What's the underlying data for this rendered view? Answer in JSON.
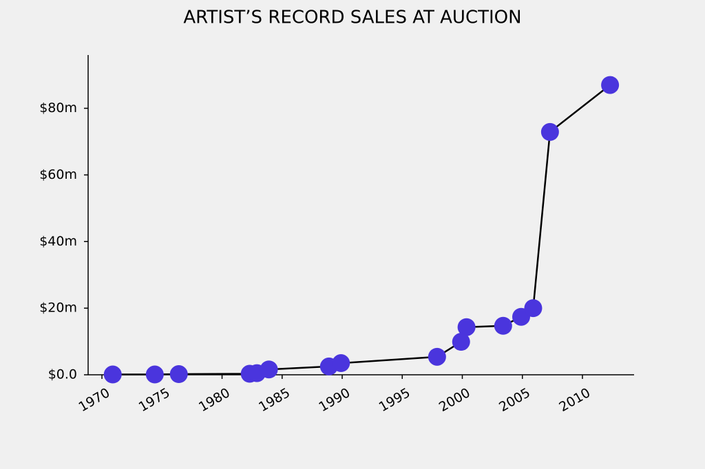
{
  "chart_data": {
    "type": "line",
    "title": "ARTIST’S RECORD SALES AT AUCTION",
    "x": [
      1970.9,
      1974.4,
      1976.4,
      1982.3,
      1982.9,
      1983.9,
      1988.9,
      1989.9,
      1997.9,
      1999.9,
      2000.35,
      2003.4,
      2004.9,
      2005.9,
      2007.3,
      2012.3
    ],
    "series": [
      {
        "color": "#4a35dd",
        "line_color": "#000000",
        "values": [
          0.1,
          0.1,
          0.2,
          0.3,
          0.5,
          1.6,
          2.5,
          3.5,
          5.4,
          9.9,
          14.3,
          14.7,
          17.4,
          20.0,
          72.9,
          87.0
        ]
      }
    ],
    "xlim": [
      1968.85,
      2014.3
    ],
    "xticks": [
      1970,
      1975,
      1980,
      1985,
      1990,
      1995,
      2000,
      2005,
      2010
    ],
    "ylim": [
      0,
      96
    ],
    "yticks": [
      {
        "value": 0,
        "label": "$0.0"
      },
      {
        "value": 20,
        "label": "$20m"
      },
      {
        "value": 40,
        "label": "$40m"
      },
      {
        "value": 60,
        "label": "$60m"
      },
      {
        "value": 80,
        "label": "$80m"
      }
    ],
    "grid": false
  }
}
